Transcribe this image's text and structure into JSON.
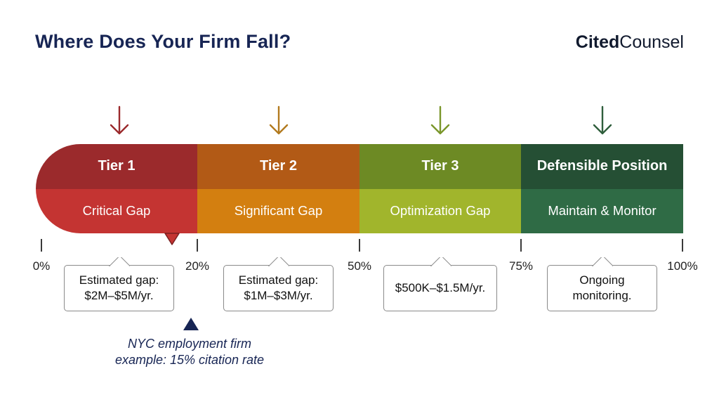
{
  "title": "Where Does Your Firm Fall?",
  "brand": {
    "part1": "Cited",
    "part2": "Counsel"
  },
  "tiers": [
    {
      "name": "Tier 1",
      "gap": "Critical Gap",
      "color_top": "#9b2a2c",
      "color_bottom": "#c43432",
      "arrow_color": "#9b2a2c"
    },
    {
      "name": "Tier 2",
      "gap": "Significant Gap",
      "color_top": "#b25a16",
      "color_bottom": "#d37f10",
      "arrow_color": "#b27a1e"
    },
    {
      "name": "Tier 3",
      "gap": "Optimization Gap",
      "color_top": "#6d8a24",
      "color_bottom": "#a1b52c",
      "arrow_color": "#7a962a"
    },
    {
      "name": "Defensible Position",
      "gap": "Maintain & Monitor",
      "color_top": "#254f34",
      "color_bottom": "#2f6b45",
      "arrow_color": "#2f5e3c"
    }
  ],
  "scale": [
    "0%",
    "20%",
    "50%",
    "75%",
    "100%"
  ],
  "callouts": [
    {
      "line1": "Estimated gap:",
      "line2": "$2M–$5M/yr."
    },
    {
      "line1": "Estimated gap:",
      "line2": "$1M–$3M/yr."
    },
    {
      "line1": "$500K–$1.5M/yr.",
      "line2": ""
    },
    {
      "line1": "Ongoing",
      "line2": "monitoring."
    }
  ],
  "example": {
    "line1": "NYC employment firm",
    "line2": "example: 15% citation rate",
    "citation_rate_percent": 15
  },
  "colors": {
    "title": "#172554",
    "marker_red": "#c43432",
    "marker_navy": "#172554"
  }
}
